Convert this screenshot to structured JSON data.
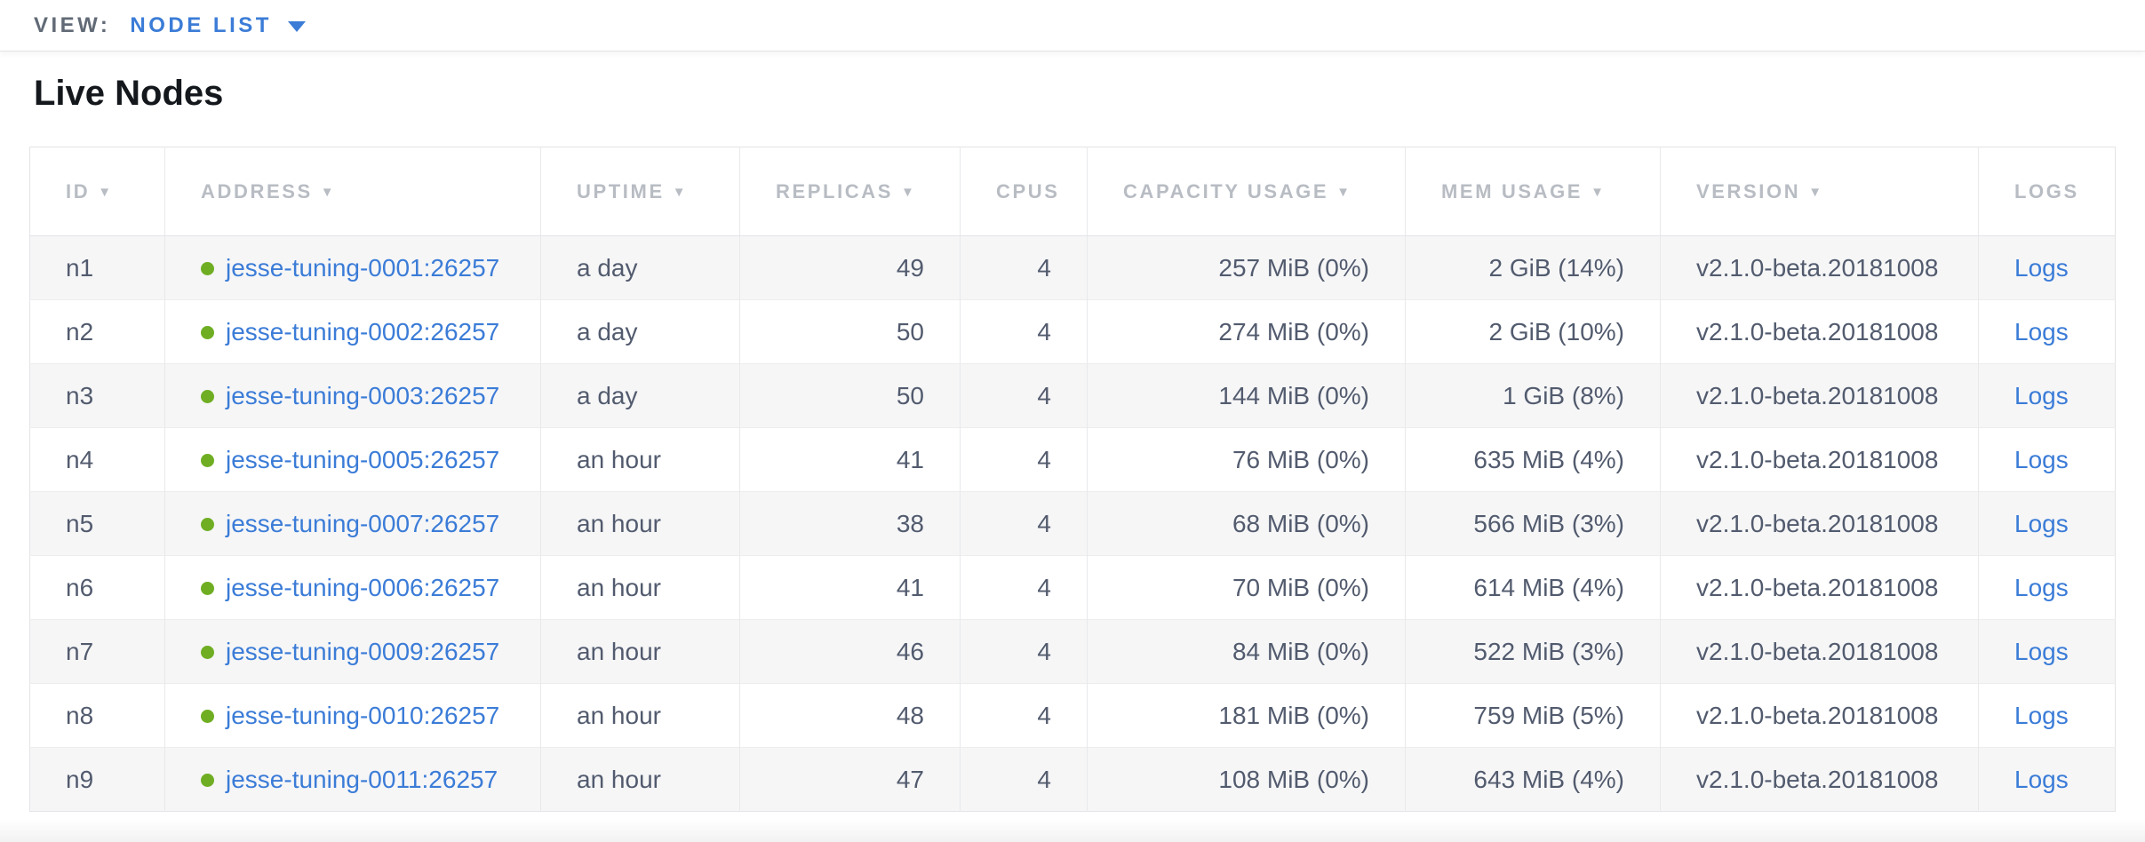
{
  "view_bar": {
    "label": "VIEW:",
    "selected": "NODE LIST",
    "caret_icon": "triangle-down"
  },
  "page": {
    "title": "Live Nodes"
  },
  "colors": {
    "accent_blue": "#3b7cd7",
    "healthy_green": "#6fae23",
    "header_gray": "#b8bcc3",
    "cell_text": "#525b6e",
    "stripe_row": "#f6f6f7"
  },
  "icons": {
    "sort_indicator": "▼",
    "status_dot": "circle",
    "dropdown_caret": "triangle-down"
  },
  "table": {
    "sort_glyph": "▼",
    "columns": [
      {
        "label": "ID",
        "sortable": true
      },
      {
        "label": "ADDRESS",
        "sortable": true
      },
      {
        "label": "UPTIME",
        "sortable": true
      },
      {
        "label": "REPLICAS",
        "sortable": true
      },
      {
        "label": "CPUS",
        "sortable": false
      },
      {
        "label": "CAPACITY USAGE",
        "sortable": true
      },
      {
        "label": "MEM USAGE",
        "sortable": true
      },
      {
        "label": "VERSION",
        "sortable": true
      },
      {
        "label": "LOGS",
        "sortable": false
      }
    ],
    "rows": [
      {
        "id": "n1",
        "status": "healthy",
        "address": "jesse-tuning-0001:26257",
        "uptime": "a day",
        "replicas": "49",
        "cpus": "4",
        "capacity": "257 MiB (0%)",
        "mem": "2 GiB (14%)",
        "version": "v2.1.0-beta.20181008",
        "logs": "Logs"
      },
      {
        "id": "n2",
        "status": "healthy",
        "address": "jesse-tuning-0002:26257",
        "uptime": "a day",
        "replicas": "50",
        "cpus": "4",
        "capacity": "274 MiB (0%)",
        "mem": "2 GiB (10%)",
        "version": "v2.1.0-beta.20181008",
        "logs": "Logs"
      },
      {
        "id": "n3",
        "status": "healthy",
        "address": "jesse-tuning-0003:26257",
        "uptime": "a day",
        "replicas": "50",
        "cpus": "4",
        "capacity": "144 MiB (0%)",
        "mem": "1 GiB (8%)",
        "version": "v2.1.0-beta.20181008",
        "logs": "Logs"
      },
      {
        "id": "n4",
        "status": "healthy",
        "address": "jesse-tuning-0005:26257",
        "uptime": "an hour",
        "replicas": "41",
        "cpus": "4",
        "capacity": "76 MiB (0%)",
        "mem": "635 MiB (4%)",
        "version": "v2.1.0-beta.20181008",
        "logs": "Logs"
      },
      {
        "id": "n5",
        "status": "healthy",
        "address": "jesse-tuning-0007:26257",
        "uptime": "an hour",
        "replicas": "38",
        "cpus": "4",
        "capacity": "68 MiB (0%)",
        "mem": "566 MiB (3%)",
        "version": "v2.1.0-beta.20181008",
        "logs": "Logs"
      },
      {
        "id": "n6",
        "status": "healthy",
        "address": "jesse-tuning-0006:26257",
        "uptime": "an hour",
        "replicas": "41",
        "cpus": "4",
        "capacity": "70 MiB (0%)",
        "mem": "614 MiB (4%)",
        "version": "v2.1.0-beta.20181008",
        "logs": "Logs"
      },
      {
        "id": "n7",
        "status": "healthy",
        "address": "jesse-tuning-0009:26257",
        "uptime": "an hour",
        "replicas": "46",
        "cpus": "4",
        "capacity": "84 MiB (0%)",
        "mem": "522 MiB (3%)",
        "version": "v2.1.0-beta.20181008",
        "logs": "Logs"
      },
      {
        "id": "n8",
        "status": "healthy",
        "address": "jesse-tuning-0010:26257",
        "uptime": "an hour",
        "replicas": "48",
        "cpus": "4",
        "capacity": "181 MiB (0%)",
        "mem": "759 MiB (5%)",
        "version": "v2.1.0-beta.20181008",
        "logs": "Logs"
      },
      {
        "id": "n9",
        "status": "healthy",
        "address": "jesse-tuning-0011:26257",
        "uptime": "an hour",
        "replicas": "47",
        "cpus": "4",
        "capacity": "108 MiB (0%)",
        "mem": "643 MiB (4%)",
        "version": "v2.1.0-beta.20181008",
        "logs": "Logs"
      }
    ]
  }
}
